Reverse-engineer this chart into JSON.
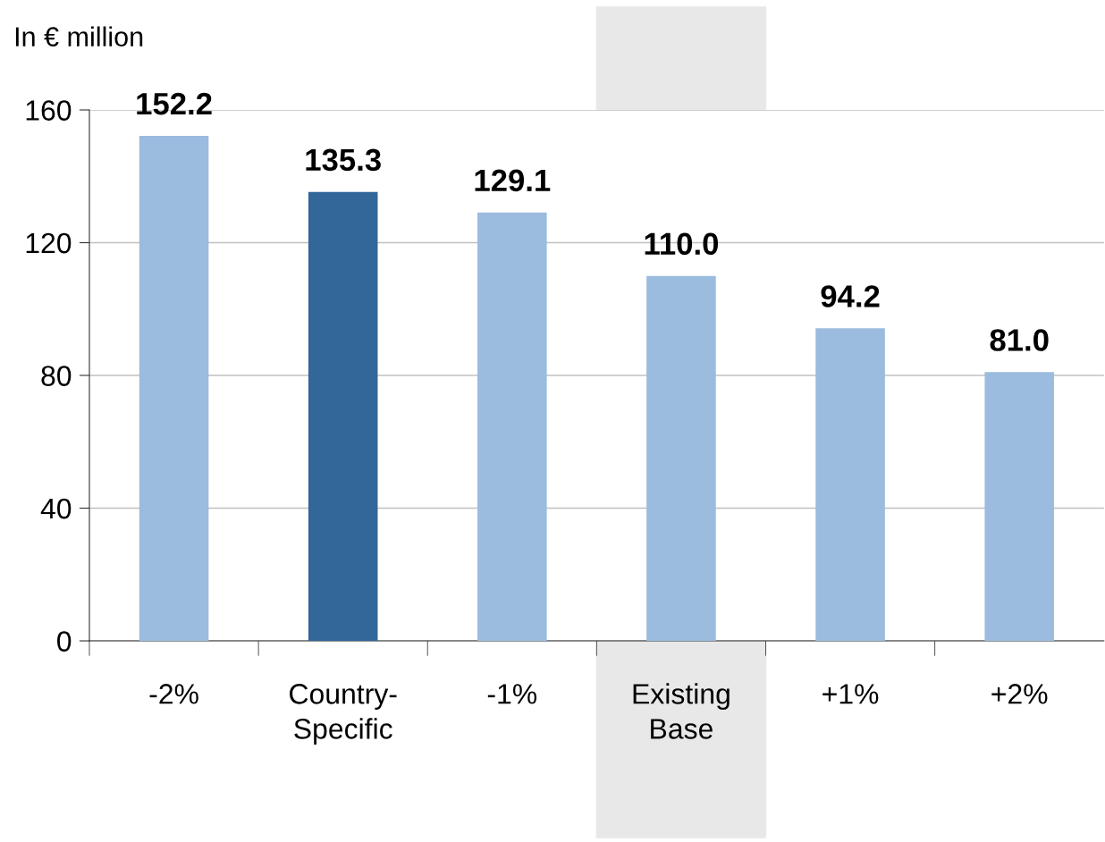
{
  "chart_data": {
    "type": "bar",
    "ylabel": "In € million",
    "categories": [
      "-2%",
      "Country-\nSpecific",
      "-1%",
      "Existing\nBase",
      "+1%",
      "+2%"
    ],
    "values": [
      152.2,
      135.3,
      129.1,
      110.0,
      94.2,
      81.0
    ],
    "colors": [
      "#9bbbdf",
      "#336699",
      "#9bbbdf",
      "#9bbbdf",
      "#9bbbdf",
      "#9bbbdf"
    ],
    "value_labels": [
      "152.2",
      "135.3",
      "129.1",
      "110.0",
      "94.2",
      "81.0"
    ],
    "ylim": [
      0,
      160
    ],
    "yticks": [
      0,
      40,
      80,
      120,
      160
    ],
    "grid": "y",
    "bands": [
      {
        "axis": "x",
        "from": "Existing\nBase",
        "to": "Existing\nBase",
        "color": "#e8e8e8"
      }
    ]
  }
}
